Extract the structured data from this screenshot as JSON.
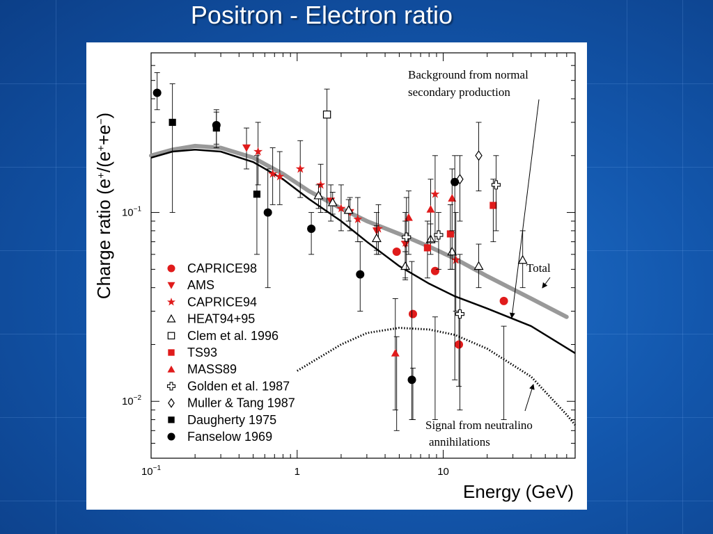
{
  "slide": {
    "title": "Positron - Electron ratio"
  },
  "chart_data": {
    "type": "scatter",
    "xlabel": "Energy (GeV)",
    "ylabel_html": "Charge ratio (e<tspan baseline-shift=\"super\" font-size=\"15\">+</tspan>/(e<tspan baseline-shift=\"super\" font-size=\"15\">+</tspan>+e<tspan baseline-shift=\"super\" font-size=\"15\">−</tspan>)",
    "xscale": "log",
    "yscale": "log",
    "xlim": [
      0.1,
      80
    ],
    "ylim": [
      0.005,
      0.7
    ],
    "x_ticks": [
      {
        "value": 0.1,
        "base": "10",
        "exp": "−1"
      },
      {
        "value": 1,
        "base": "1",
        "exp": ""
      },
      {
        "value": 10,
        "base": "10",
        "exp": ""
      }
    ],
    "y_ticks": [
      {
        "value": 0.01,
        "base": "10",
        "exp": "−2"
      },
      {
        "value": 0.1,
        "base": "10",
        "exp": "−1"
      }
    ],
    "legend_position": "lower-left",
    "legend": [
      {
        "name": "CAPRICE98",
        "marker": "circle",
        "color": "#e01b1b"
      },
      {
        "name": "AMS",
        "marker": "triangle-down",
        "color": "#e01b1b"
      },
      {
        "name": "CAPRICE94",
        "marker": "star",
        "color": "#e01b1b"
      },
      {
        "name": "HEAT94+95",
        "marker": "triangle-open",
        "color": "#000000"
      },
      {
        "name": "Clem et al. 1996",
        "marker": "square-open",
        "color": "#000000"
      },
      {
        "name": "TS93",
        "marker": "square",
        "color": "#e01b1b"
      },
      {
        "name": "MASS89",
        "marker": "triangle",
        "color": "#e01b1b"
      },
      {
        "name": "Golden et al. 1987",
        "marker": "cross-open",
        "color": "#000000"
      },
      {
        "name": "Muller & Tang 1987",
        "marker": "diamond-open",
        "color": "#000000"
      },
      {
        "name": "Daugherty 1975",
        "marker": "square",
        "color": "#000000"
      },
      {
        "name": "Fanselow 1969",
        "marker": "circle",
        "color": "#000000"
      }
    ],
    "curves": [
      {
        "id": "background",
        "color": "#999999",
        "points": [
          [
            0.1,
            0.2
          ],
          [
            0.14,
            0.215
          ],
          [
            0.2,
            0.225
          ],
          [
            0.3,
            0.22
          ],
          [
            0.5,
            0.195
          ],
          [
            0.8,
            0.16
          ],
          [
            1.2,
            0.13
          ],
          [
            2,
            0.105
          ],
          [
            3,
            0.09
          ],
          [
            5,
            0.077
          ],
          [
            8,
            0.066
          ],
          [
            12,
            0.057
          ],
          [
            20,
            0.046
          ],
          [
            40,
            0.035
          ],
          [
            70,
            0.028
          ]
        ]
      },
      {
        "id": "total",
        "color": "#000000",
        "points": [
          [
            0.1,
            0.195
          ],
          [
            0.14,
            0.21
          ],
          [
            0.2,
            0.215
          ],
          [
            0.3,
            0.21
          ],
          [
            0.5,
            0.185
          ],
          [
            0.8,
            0.15
          ],
          [
            1.2,
            0.118
          ],
          [
            2,
            0.09
          ],
          [
            3,
            0.07
          ],
          [
            5,
            0.052
          ],
          [
            8,
            0.042
          ],
          [
            12,
            0.036
          ],
          [
            20,
            0.031
          ],
          [
            40,
            0.025
          ],
          [
            80,
            0.018
          ]
        ]
      },
      {
        "id": "signal",
        "color": "#000000",
        "dotted": true,
        "points": [
          [
            1,
            0.0145
          ],
          [
            2,
            0.02
          ],
          [
            3,
            0.023
          ],
          [
            5,
            0.0245
          ],
          [
            8,
            0.024
          ],
          [
            12,
            0.0225
          ],
          [
            20,
            0.019
          ],
          [
            40,
            0.0135
          ],
          [
            70,
            0.0085
          ],
          [
            80,
            0.0075
          ]
        ]
      }
    ],
    "series": [
      {
        "name": "CAPRICE98",
        "marker": "circle",
        "color": "#e01b1b",
        "points": [
          [
            4.8,
            0.062,
            0.007,
            0.022
          ],
          [
            6.2,
            0.029,
            0.008,
            0.015
          ],
          [
            8.8,
            0.049,
            0.008,
            0.028
          ],
          [
            12.8,
            0.02,
            0.012,
            0.03
          ],
          [
            26,
            0.034,
            0.008,
            0.025
          ]
        ]
      },
      {
        "name": "AMS",
        "marker": "triangle-down",
        "color": "#e01b1b",
        "points": [
          [
            0.45,
            0.22,
            0.17,
            0.28
          ],
          [
            1.7,
            0.115,
            0.09,
            0.14
          ],
          [
            2.3,
            0.1,
            0.08,
            0.12
          ],
          [
            3.5,
            0.08,
            0.06,
            0.1
          ],
          [
            5.5,
            0.068,
            0.05,
            0.09
          ]
        ]
      },
      {
        "name": "CAPRICE94",
        "marker": "star",
        "color": "#e01b1b",
        "points": [
          [
            0.54,
            0.21,
            0.14,
            0.3
          ],
          [
            0.68,
            0.16,
            0.11,
            0.22
          ],
          [
            0.76,
            0.155,
            0.11,
            0.21
          ],
          [
            1.05,
            0.17,
            0.12,
            0.24
          ],
          [
            1.45,
            0.14,
            0.1,
            0.18
          ],
          [
            2.0,
            0.105,
            0.08,
            0.14
          ],
          [
            2.6,
            0.092,
            0.07,
            0.12
          ],
          [
            3.6,
            0.082,
            0.06,
            0.11
          ],
          [
            5.5,
            0.069,
            0.045,
            0.1
          ],
          [
            8.8,
            0.125,
            0.07,
            0.2
          ],
          [
            12.2,
            0.056,
            0.03,
            0.1
          ]
        ]
      },
      {
        "name": "HEAT94+95",
        "marker": "triangle-open",
        "color": "#000000",
        "points": [
          [
            1.4,
            0.123,
            0.105,
            0.14
          ],
          [
            1.75,
            0.113,
            0.098,
            0.128
          ],
          [
            2.25,
            0.103,
            0.09,
            0.117
          ],
          [
            3.5,
            0.073,
            0.063,
            0.085
          ],
          [
            5.5,
            0.052,
            0.044,
            0.062
          ],
          [
            8.2,
            0.072,
            0.06,
            0.087
          ],
          [
            11.5,
            0.062,
            0.05,
            0.078
          ],
          [
            17.5,
            0.052,
            0.04,
            0.068
          ],
          [
            35,
            0.056,
            0.04,
            0.08
          ]
        ]
      },
      {
        "name": "Clem et al. 1996",
        "marker": "square-open",
        "color": "#000000",
        "points": [
          [
            1.6,
            0.33,
            0.1,
            0.45
          ]
        ]
      },
      {
        "name": "TS93",
        "marker": "square",
        "color": "#e01b1b",
        "points": [
          [
            7.8,
            0.065,
            0.045,
            0.09
          ],
          [
            11.2,
            0.077,
            0.05,
            0.11
          ],
          [
            22,
            0.109,
            0.07,
            0.15
          ]
        ]
      },
      {
        "name": "MASS89",
        "marker": "triangle",
        "color": "#e01b1b",
        "points": [
          [
            4.7,
            0.018,
            0.009,
            0.035
          ],
          [
            5.8,
            0.094,
            0.06,
            0.13
          ],
          [
            8.2,
            0.104,
            0.07,
            0.15
          ],
          [
            11.5,
            0.119,
            0.08,
            0.17
          ]
        ]
      },
      {
        "name": "Golden et al. 1987",
        "marker": "cross-open",
        "color": "#000000",
        "points": [
          [
            5.6,
            0.074,
            0.05,
            0.12
          ],
          [
            9.3,
            0.076,
            0.05,
            0.1
          ],
          [
            13,
            0.029,
            0.009,
            0.06
          ],
          [
            23,
            0.14,
            0.08,
            0.2
          ]
        ]
      },
      {
        "name": "Muller & Tang 1987",
        "marker": "diamond-open",
        "color": "#000000",
        "points": [
          [
            13,
            0.15,
            0.09,
            0.2
          ],
          [
            17.5,
            0.2,
            0.13,
            0.3
          ]
        ]
      },
      {
        "name": "Daugherty 1975",
        "marker": "square",
        "color": "#000000",
        "points": [
          [
            0.14,
            0.3,
            0.1,
            0.48
          ],
          [
            0.28,
            0.28,
            0.22,
            0.34
          ],
          [
            0.53,
            0.125,
            0.06,
            0.2
          ]
        ]
      },
      {
        "name": "Fanselow 1969",
        "marker": "circle",
        "color": "#000000",
        "points": [
          [
            0.11,
            0.43,
            0.35,
            0.55
          ],
          [
            0.28,
            0.29,
            0.23,
            0.35
          ],
          [
            0.63,
            0.1,
            0.04,
            0.17
          ],
          [
            1.25,
            0.082,
            0.06,
            0.1
          ],
          [
            2.7,
            0.047,
            0.03,
            0.07
          ],
          [
            6.1,
            0.013,
            0.008,
            0.055
          ],
          [
            12,
            0.145,
            0.013,
            0.2
          ]
        ]
      }
    ],
    "annotations": {
      "background_label": [
        "Background from normal",
        "secondary production"
      ],
      "total_label": "Total",
      "signal_label": [
        "Signal from neutralino",
        "annihilations"
      ]
    }
  }
}
